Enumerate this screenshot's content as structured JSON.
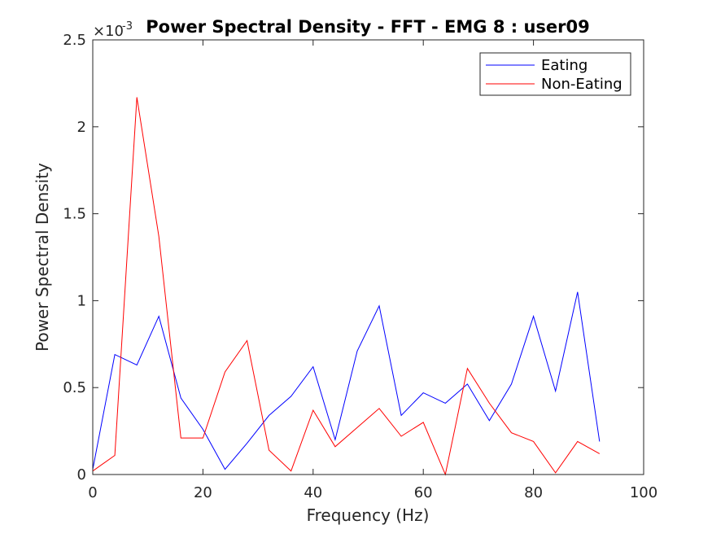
{
  "chart_data": {
    "type": "line",
    "title": "Power Spectral Density - FFT - EMG 8 :  user09",
    "xlabel": "Frequency (Hz)",
    "ylabel": "Power Spectral Density",
    "xlim": [
      0,
      100
    ],
    "ylim": [
      0,
      2.5
    ],
    "y_exponent_label": "×10",
    "y_exponent_power": "-3",
    "x_ticks": [
      0,
      20,
      40,
      60,
      80,
      100
    ],
    "x_tick_labels": [
      "0",
      "20",
      "40",
      "60",
      "80",
      "100"
    ],
    "y_ticks": [
      0,
      0.5,
      1,
      1.5,
      2,
      2.5
    ],
    "y_tick_labels": [
      "0",
      "0.5",
      "1",
      "1.5",
      "2",
      "2.5"
    ],
    "legend_position": "top-right",
    "x": [
      0,
      4,
      8,
      12,
      16,
      20,
      24,
      28,
      32,
      36,
      40,
      44,
      48,
      52,
      56,
      60,
      64,
      68,
      72,
      76,
      80,
      84,
      88,
      92
    ],
    "series": [
      {
        "name": "Eating",
        "color": "#0000ff",
        "values": [
          0.03,
          0.69,
          0.63,
          0.91,
          0.44,
          0.26,
          0.03,
          0.18,
          0.34,
          0.45,
          0.62,
          0.2,
          0.71,
          0.97,
          0.34,
          0.47,
          0.41,
          0.52,
          0.31,
          0.52,
          0.91,
          0.48,
          1.05,
          0.19
        ]
      },
      {
        "name": "Non-Eating",
        "color": "#ff0000",
        "values": [
          0.02,
          0.11,
          2.17,
          1.37,
          0.21,
          0.21,
          0.59,
          0.77,
          0.14,
          0.02,
          0.37,
          0.16,
          0.27,
          0.38,
          0.22,
          0.3,
          0.0,
          0.61,
          0.41,
          0.24,
          0.19,
          0.01,
          0.19,
          0.12
        ]
      }
    ]
  }
}
